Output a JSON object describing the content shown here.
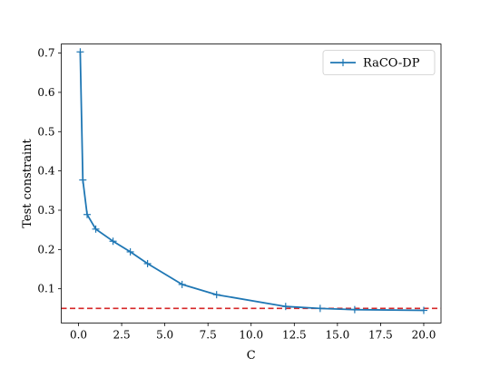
{
  "chart_data": {
    "type": "line",
    "title": "",
    "xlabel": "C",
    "ylabel": "Test constraint",
    "xlim": [
      -1.0,
      21.0
    ],
    "ylim": [
      0.013,
      0.723
    ],
    "xticks": [
      0.0,
      2.5,
      5.0,
      7.5,
      10.0,
      12.5,
      15.0,
      17.5,
      20.0
    ],
    "xtick_labels": [
      "0.0",
      "2.5",
      "5.0",
      "7.5",
      "10.0",
      "12.5",
      "15.0",
      "17.5",
      "20.0"
    ],
    "yticks": [
      0.1,
      0.2,
      0.3,
      0.4,
      0.5,
      0.6,
      0.7
    ],
    "ytick_labels": [
      "0.1",
      "0.2",
      "0.3",
      "0.4",
      "0.5",
      "0.6",
      "0.7"
    ],
    "grid": false,
    "legend_position": "top-right",
    "series": [
      {
        "name": "RaCO-DP",
        "color": "#1f77b4",
        "marker": "plus",
        "x": [
          0.1,
          0.25,
          0.5,
          1.0,
          2.0,
          3.0,
          4.0,
          6.0,
          8.0,
          12.0,
          14.0,
          16.0,
          20.0
        ],
        "y": [
          0.703,
          0.377,
          0.289,
          0.252,
          0.221,
          0.194,
          0.164,
          0.111,
          0.085,
          0.055,
          0.05,
          0.047,
          0.045
        ]
      }
    ],
    "reference_lines": [
      {
        "orientation": "horizontal",
        "y": 0.05,
        "color": "#d62728",
        "style": "dashed"
      }
    ]
  }
}
